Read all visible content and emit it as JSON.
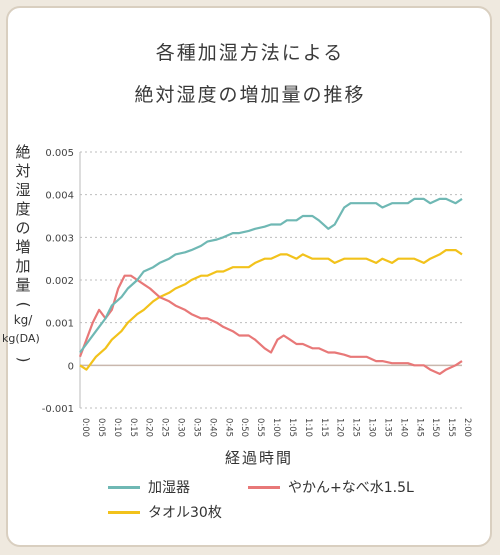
{
  "title_line1": "各種加湿方法による",
  "title_line2": "絶対湿度の増加量の推移",
  "colors": {
    "humidifier": "#6fb8b4",
    "kettle": "#e87878",
    "towel": "#f2c21b"
  },
  "chart_data": {
    "type": "line",
    "xlabel": "経過時間",
    "ylabel": "絶対湿度の増加量(kg/kg(DA))",
    "ylim": [
      -0.001,
      0.005
    ],
    "yticks": [
      "-0.001",
      "0",
      "0.001",
      "0.002",
      "0.003",
      "0.004",
      "0.005"
    ],
    "ytick_values": [
      -0.001,
      0,
      0.001,
      0.002,
      0.003,
      0.004,
      0.005
    ],
    "x_ticks": [
      "0:00",
      "0:05",
      "0:10",
      "0:15",
      "0:20",
      "0:25",
      "0:30",
      "0:35",
      "0:40",
      "0:45",
      "0:50",
      "0:55",
      "1:00",
      "1:05",
      "1:10",
      "1:15",
      "1:20",
      "1:25",
      "1:30",
      "1:35",
      "1:40",
      "1:45",
      "1:50",
      "1:55",
      "2:00"
    ],
    "x_minutes_max": 120,
    "grid": "horizontal dotted",
    "legend_position": "bottom",
    "series": [
      {
        "name": "加湿器",
        "color": "#6fb8b4",
        "x": [
          0,
          2,
          5,
          8,
          10,
          13,
          15,
          18,
          20,
          23,
          25,
          28,
          30,
          33,
          35,
          38,
          40,
          43,
          45,
          48,
          50,
          53,
          55,
          58,
          60,
          63,
          65,
          68,
          70,
          73,
          75,
          78,
          80,
          83,
          85,
          88,
          90,
          93,
          95,
          98,
          100,
          103,
          105,
          108,
          110,
          113,
          115,
          118,
          120
        ],
        "y": [
          0.0003,
          0.0005,
          0.0008,
          0.0011,
          0.0014,
          0.0016,
          0.0018,
          0.002,
          0.0022,
          0.0023,
          0.0024,
          0.0025,
          0.0026,
          0.00265,
          0.0027,
          0.0028,
          0.0029,
          0.00295,
          0.003,
          0.0031,
          0.0031,
          0.00315,
          0.0032,
          0.00325,
          0.0033,
          0.0033,
          0.0034,
          0.0034,
          0.0035,
          0.0035,
          0.0034,
          0.0032,
          0.0033,
          0.0037,
          0.0038,
          0.0038,
          0.0038,
          0.0038,
          0.0037,
          0.0038,
          0.0038,
          0.0038,
          0.0039,
          0.0039,
          0.0038,
          0.0039,
          0.0039,
          0.0038,
          0.0039
        ]
      },
      {
        "name": "やかん+なべ水1.5L",
        "color": "#e87878",
        "x": [
          0,
          2,
          4,
          6,
          8,
          10,
          12,
          14,
          16,
          18,
          20,
          22,
          25,
          28,
          30,
          33,
          35,
          38,
          40,
          43,
          45,
          48,
          50,
          53,
          55,
          58,
          60,
          62,
          64,
          66,
          68,
          70,
          73,
          75,
          78,
          80,
          83,
          85,
          88,
          90,
          93,
          95,
          98,
          100,
          103,
          105,
          108,
          110,
          113,
          115,
          118,
          120
        ],
        "y": [
          0.0002,
          0.0006,
          0.001,
          0.0013,
          0.0011,
          0.0013,
          0.0018,
          0.0021,
          0.0021,
          0.002,
          0.0019,
          0.0018,
          0.0016,
          0.0015,
          0.0014,
          0.0013,
          0.0012,
          0.0011,
          0.0011,
          0.001,
          0.0009,
          0.0008,
          0.0007,
          0.0007,
          0.0006,
          0.0004,
          0.0003,
          0.0006,
          0.0007,
          0.0006,
          0.0005,
          0.0005,
          0.0004,
          0.0004,
          0.0003,
          0.0003,
          0.00025,
          0.0002,
          0.0002,
          0.0002,
          0.0001,
          0.0001,
          5e-05,
          5e-05,
          5e-05,
          0.0,
          0.0,
          -0.0001,
          -0.0002,
          -0.0001,
          0.0,
          0.0001
        ]
      },
      {
        "name": "タオル30枚",
        "color": "#f2c21b",
        "x": [
          0,
          2,
          5,
          8,
          10,
          13,
          15,
          18,
          20,
          23,
          25,
          28,
          30,
          33,
          35,
          38,
          40,
          43,
          45,
          48,
          50,
          53,
          55,
          58,
          60,
          63,
          65,
          68,
          70,
          73,
          75,
          78,
          80,
          83,
          85,
          88,
          90,
          93,
          95,
          98,
          100,
          103,
          105,
          108,
          110,
          113,
          115,
          118,
          120
        ],
        "y": [
          0.0,
          -0.0001,
          0.0002,
          0.0004,
          0.0006,
          0.0008,
          0.001,
          0.0012,
          0.0013,
          0.0015,
          0.0016,
          0.0017,
          0.0018,
          0.0019,
          0.002,
          0.0021,
          0.0021,
          0.0022,
          0.0022,
          0.0023,
          0.0023,
          0.0023,
          0.0024,
          0.0025,
          0.0025,
          0.0026,
          0.0026,
          0.0025,
          0.0026,
          0.0025,
          0.0025,
          0.0025,
          0.0024,
          0.0025,
          0.0025,
          0.0025,
          0.0025,
          0.0024,
          0.0025,
          0.0024,
          0.0025,
          0.0025,
          0.0025,
          0.0024,
          0.0025,
          0.0026,
          0.0027,
          0.0027,
          0.0026
        ]
      }
    ]
  },
  "legend": {
    "humidifier": "加湿器",
    "kettle": "やかん+なべ水1.5L",
    "towel": "タオル30枚"
  }
}
